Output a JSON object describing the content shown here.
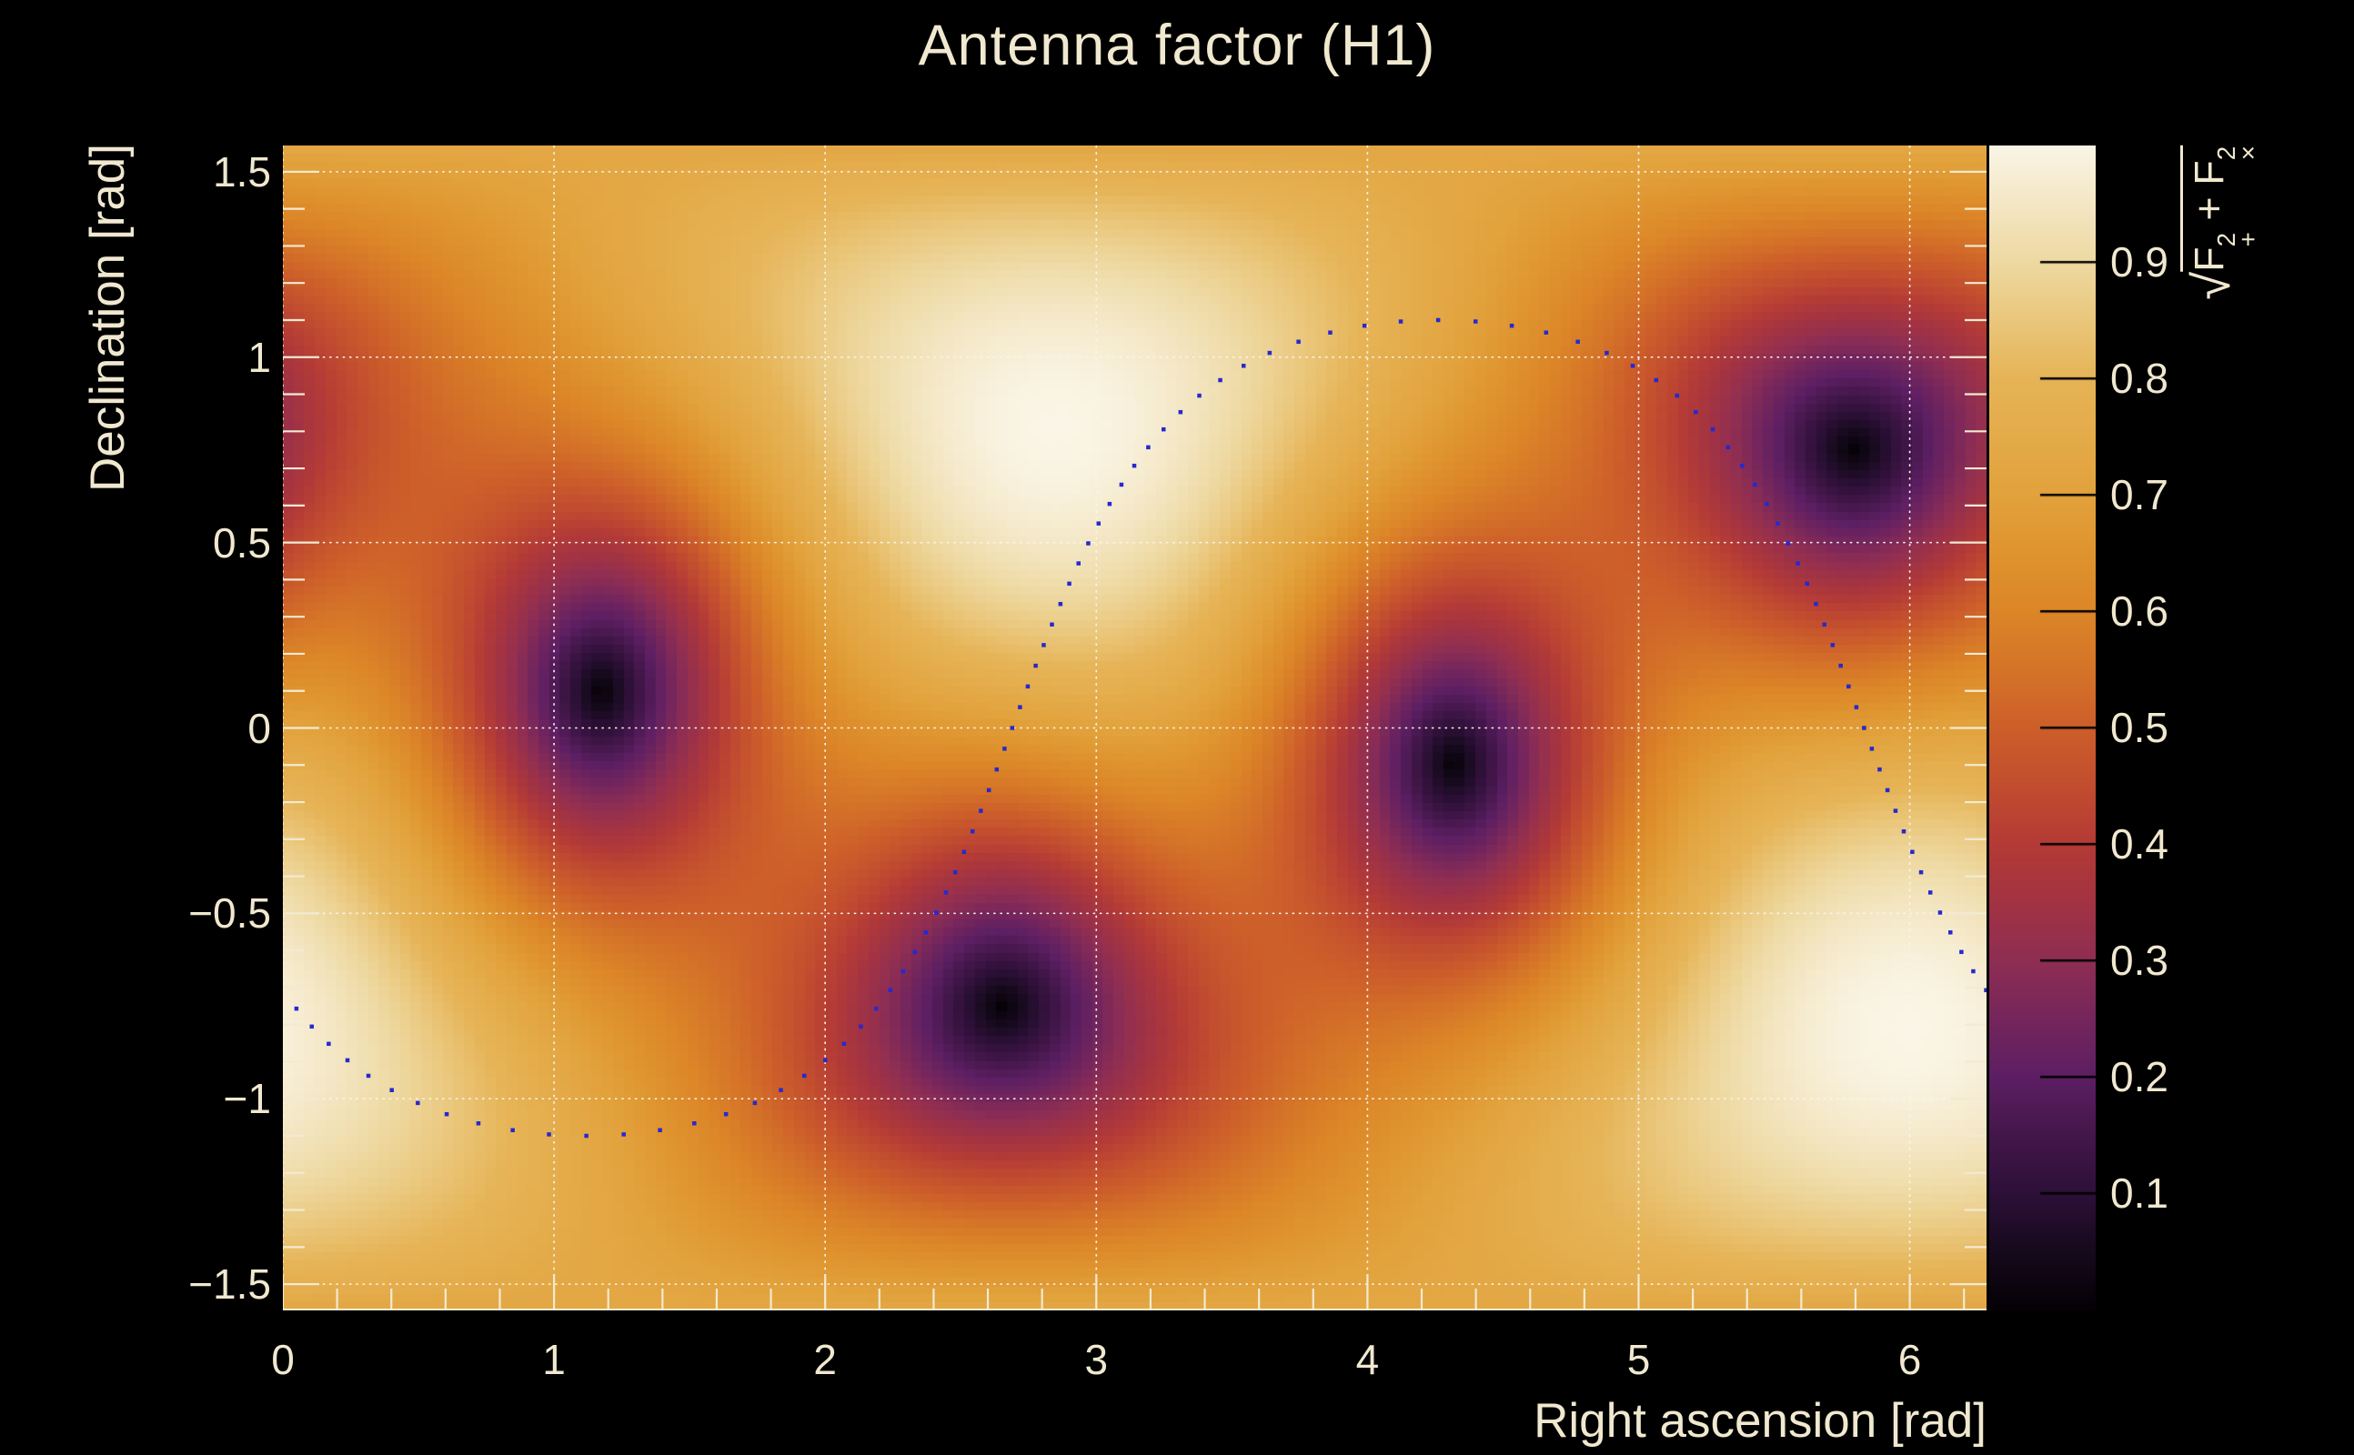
{
  "page": {
    "background": "#000000"
  },
  "chart_data": {
    "type": "heatmap",
    "title": "Antenna factor (H1)",
    "xlabel": "Right ascension [rad]",
    "ylabel": "Declination [rad]",
    "zlabel": "sqrt(F+^2 + Fx^2)",
    "zlabel_parts": {
      "sqrt": "√",
      "base1": "F",
      "sup1": "2",
      "sub1": "+",
      "op": " + ",
      "base2": "F",
      "sup2": "2",
      "sub2": "×"
    },
    "x_range": [
      0,
      6.28318
    ],
    "y_range": [
      -1.5708,
      1.5708
    ],
    "z_range": [
      0,
      1
    ],
    "x_ticks": {
      "values": [
        0,
        1,
        2,
        3,
        4,
        5,
        6
      ],
      "labels": [
        "0",
        "1",
        "2",
        "3",
        "4",
        "5",
        "6"
      ],
      "minor_step": 0.2
    },
    "y_ticks": {
      "values": [
        1.5,
        1,
        0.5,
        0,
        -0.5,
        -1,
        -1.5
      ],
      "labels": [
        "1.5",
        "1",
        "0.5",
        "0",
        "−0.5",
        "−1",
        "−1.5"
      ],
      "minor_step": 0.1
    },
    "z_ticks": {
      "values": [
        0.9,
        0.8,
        0.7,
        0.6,
        0.5,
        0.4,
        0.3,
        0.2,
        0.1
      ],
      "labels": [
        "0.9",
        "0.8",
        "0.7",
        "0.6",
        "0.5",
        "0.4",
        "0.3",
        "0.2",
        "0.1"
      ]
    },
    "grid": {
      "on": true,
      "style": "dotted"
    },
    "bins": {
      "nx": 160,
      "ny": 140
    },
    "detector_model": {
      "name": "H1",
      "zenith_ra": 2.85,
      "zenith_dec": 0.81,
      "arm_azimuth": -0.643,
      "formula": "value = sqrt(0.25*(1+cos2(theta))^2*cos2(2*phi) + cos2(theta)*sin2(2*phi)), theta/phi in detector frame"
    },
    "minima": [
      [
        1.17,
        0.12
      ],
      [
        2.66,
        -0.75
      ],
      [
        4.32,
        -0.1
      ],
      [
        5.8,
        0.75
      ]
    ],
    "maxima": [
      [
        2.85,
        0.81
      ],
      [
        5.99,
        -0.81
      ]
    ],
    "colormap_stops": [
      [
        0.0,
        "#050106"
      ],
      [
        0.05,
        "#160a1d"
      ],
      [
        0.1,
        "#2d1038"
      ],
      [
        0.15,
        "#44174b"
      ],
      [
        0.2,
        "#5d1f63"
      ],
      [
        0.25,
        "#75265c"
      ],
      [
        0.3,
        "#8f2e53"
      ],
      [
        0.35,
        "#a23343"
      ],
      [
        0.4,
        "#b43b36"
      ],
      [
        0.45,
        "#c24d2f"
      ],
      [
        0.5,
        "#cd5f2a"
      ],
      [
        0.55,
        "#d57428"
      ],
      [
        0.6,
        "#dc8628"
      ],
      [
        0.65,
        "#df942f"
      ],
      [
        0.7,
        "#e2a23c"
      ],
      [
        0.75,
        "#e4ab4a"
      ],
      [
        0.8,
        "#e6b457"
      ],
      [
        0.85,
        "#eac77c"
      ],
      [
        0.9,
        "#eed9a2"
      ],
      [
        0.95,
        "#f4e7c5"
      ],
      [
        1.0,
        "#faf5e6"
      ]
    ],
    "overlay_curve": {
      "type": "great_circle_dots",
      "node_ra": 2.69,
      "inclination": 1.1,
      "n_points": 100,
      "marker": "square",
      "marker_size": 4.5,
      "color": "#2629cf"
    }
  },
  "colors": {
    "foreground": "#f0e8cf",
    "background": "#000000",
    "grid": "#faf6eb",
    "tick": "#f2ead2",
    "palette_tick": "#000000",
    "axis_line": "#f2ead2"
  }
}
